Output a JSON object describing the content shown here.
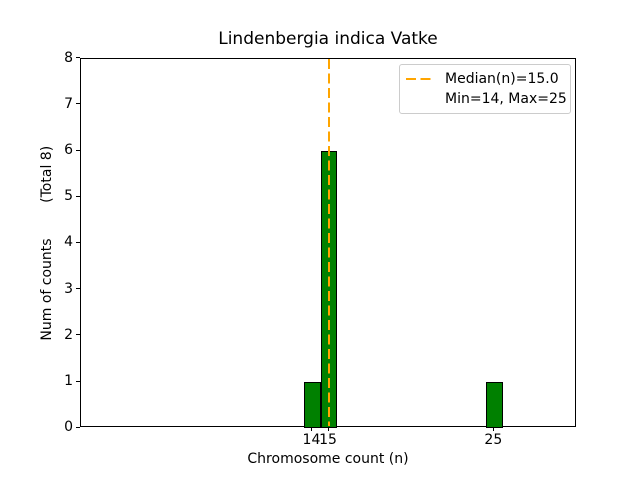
{
  "chart_data": {
    "type": "bar",
    "title": "Lindenbergia indica Vatke",
    "xlabel": "Chromosome count (n)",
    "ylabel": "Num of counts        (Total 8)",
    "categories": [
      14,
      15,
      25
    ],
    "values": [
      1,
      6,
      1
    ],
    "bar_width": 1,
    "bar_color": "#008000",
    "bar_edge_color": "#000000",
    "xlim": [
      0,
      30
    ],
    "ylim": [
      0,
      8
    ],
    "xticks": [
      "14",
      "15",
      "25"
    ],
    "xtick_values": [
      14,
      15,
      25
    ],
    "yticks": [
      "0",
      "1",
      "2",
      "3",
      "4",
      "5",
      "6",
      "7",
      "8"
    ],
    "ytick_values": [
      0,
      1,
      2,
      3,
      4,
      5,
      6,
      7,
      8
    ],
    "grid": false,
    "median_line": {
      "x": 15,
      "color": "#ffa500",
      "style": "dashed",
      "label": "Median(n)=15.0"
    },
    "legend": {
      "position": "upper right",
      "entries": [
        {
          "handle": "dashed-line",
          "handle_color": "#ffa500",
          "label": "Median(n)=15.0"
        },
        {
          "handle": "none",
          "handle_color": "",
          "label": "Min=14, Max=25"
        }
      ]
    }
  }
}
